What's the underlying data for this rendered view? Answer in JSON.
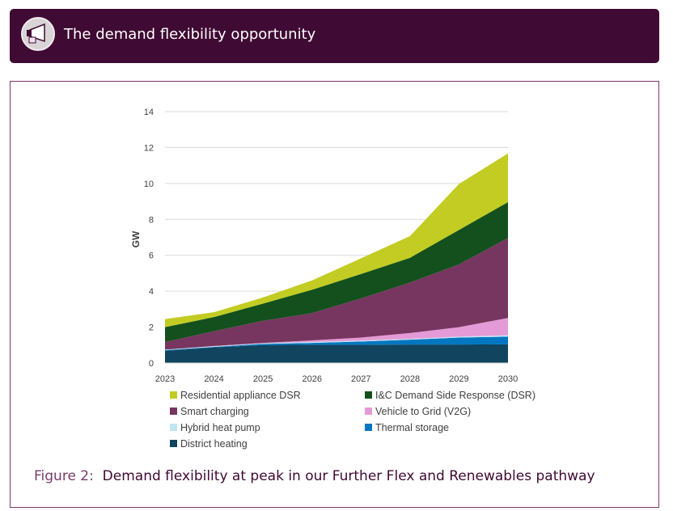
{
  "header": {
    "title": "The demand flexibility opportunity",
    "icon": "megaphone-icon"
  },
  "caption": {
    "label": "Figure 2:",
    "text": "Demand flexibility at peak in our Further Flex and Renewables pathway"
  },
  "chart_data": {
    "type": "area",
    "stacked": true,
    "title": "",
    "xlabel": "",
    "ylabel": "GW",
    "ylim": [
      0,
      14
    ],
    "yticks": [
      0,
      2,
      4,
      6,
      8,
      10,
      12,
      14
    ],
    "grid": true,
    "legend_position": "bottom",
    "categories": [
      "2023",
      "2024",
      "2025",
      "2026",
      "2027",
      "2028",
      "2029",
      "2030"
    ],
    "series": [
      {
        "name": "District heating",
        "color": "#10445f",
        "values": [
          0.68,
          0.87,
          1.0,
          1.02,
          1.02,
          1.03,
          1.03,
          1.04
        ]
      },
      {
        "name": "Thermal storage",
        "color": "#0077c0",
        "values": [
          0.04,
          0.03,
          0.07,
          0.1,
          0.18,
          0.27,
          0.39,
          0.43
        ]
      },
      {
        "name": "Hybrid heat pump",
        "color": "#bfe4f2",
        "values": [
          0.02,
          0.03,
          0.03,
          0.05,
          0.05,
          0.05,
          0.05,
          0.08
        ]
      },
      {
        "name": "Vehicle to Grid (V2G)",
        "color": "#e49ad6",
        "values": [
          0.01,
          0.02,
          0.02,
          0.09,
          0.17,
          0.32,
          0.53,
          0.96
        ]
      },
      {
        "name": "Smart charging",
        "color": "#77365f",
        "values": [
          0.42,
          0.82,
          1.23,
          1.52,
          2.18,
          2.81,
          3.49,
          4.45
        ]
      },
      {
        "name": "I&C Demand Side Response (DSR)",
        "color": "#13501d",
        "values": [
          0.83,
          0.79,
          0.96,
          1.3,
          1.36,
          1.38,
          1.92,
          2.0
        ]
      },
      {
        "name": "Residential appliance DSR",
        "color": "#c2cc22",
        "values": [
          0.45,
          0.27,
          0.34,
          0.52,
          0.87,
          1.21,
          2.56,
          2.71
        ]
      }
    ],
    "legend_order": [
      6,
      5,
      4,
      3,
      2,
      1,
      0
    ]
  }
}
